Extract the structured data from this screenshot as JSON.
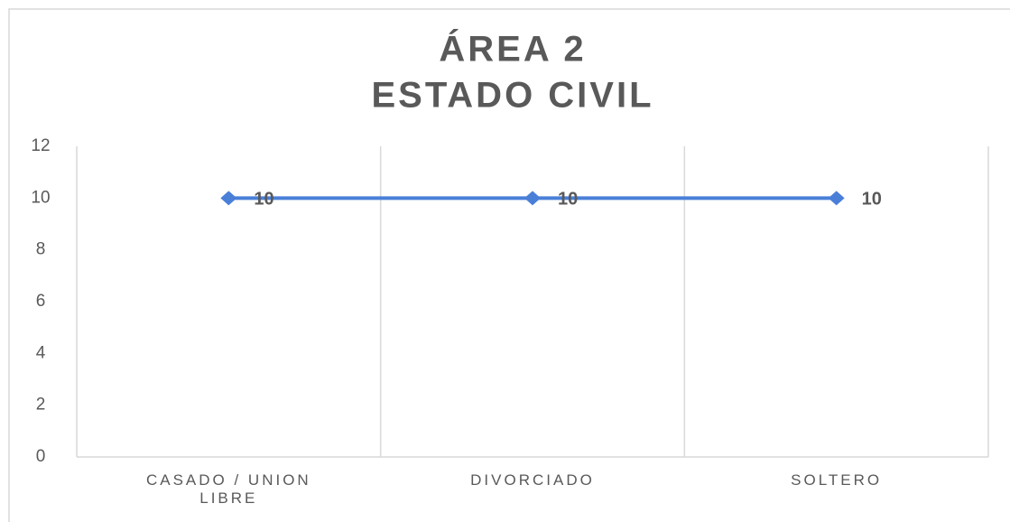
{
  "chart_data": {
    "type": "line",
    "title": [
      "ÁREA 2",
      "ESTADO CIVIL"
    ],
    "categories": [
      "CASADO / UNION LIBRE",
      "DIVORCIADO",
      "SOLTERO"
    ],
    "values": [
      10,
      10,
      10
    ],
    "color": "#4a7fd8",
    "ylim": [
      0,
      12
    ],
    "yticks": [
      0,
      2,
      4,
      6,
      8,
      10,
      12
    ],
    "data_labels": true
  }
}
